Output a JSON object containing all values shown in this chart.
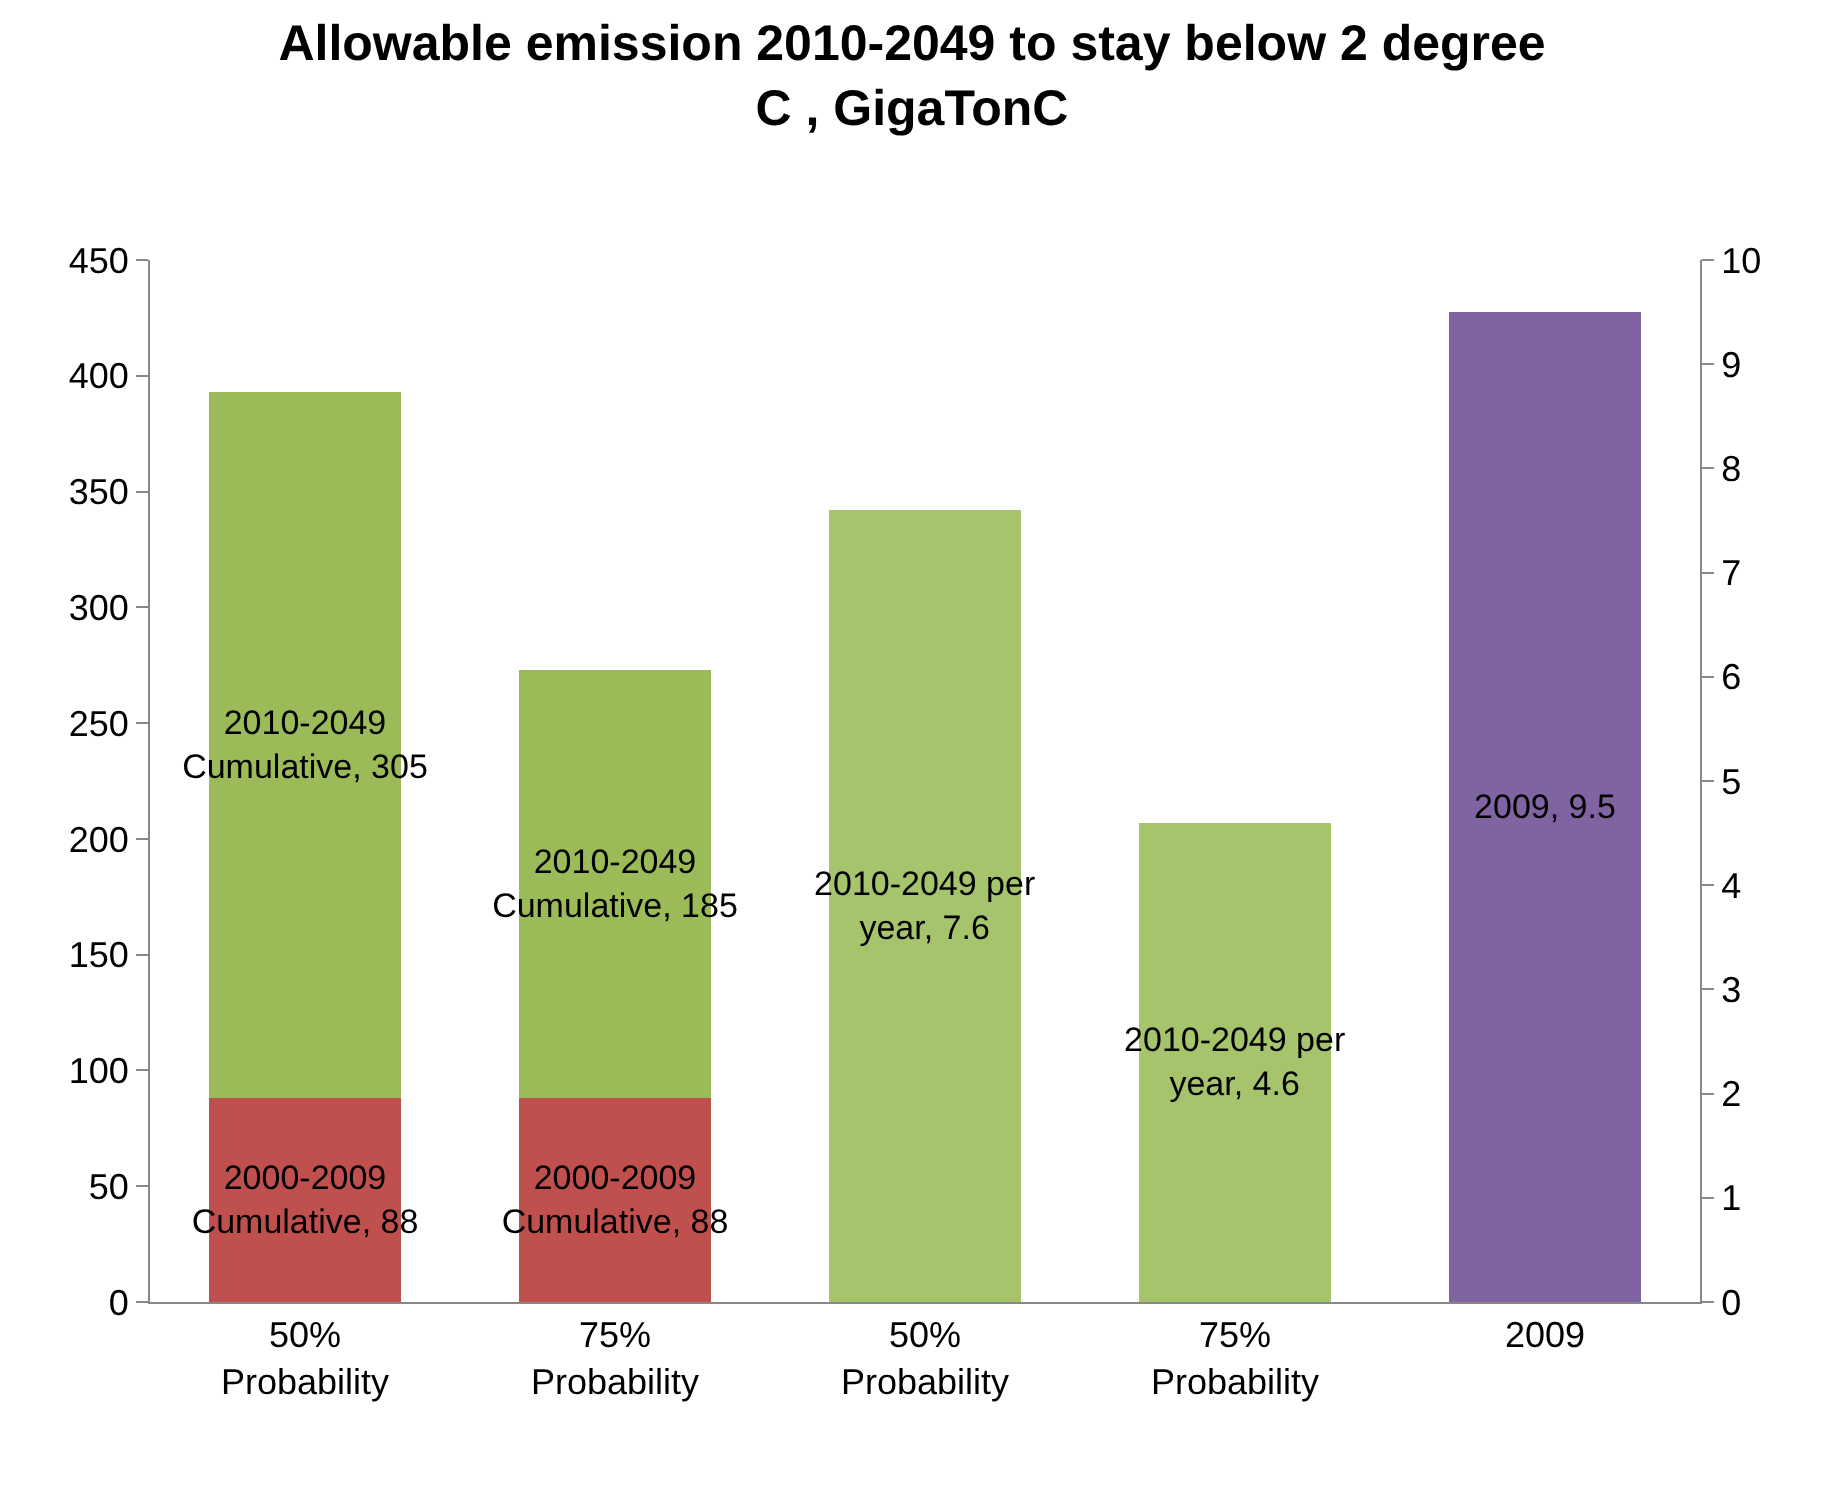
{
  "chart_data": {
    "type": "bar",
    "title": "Allowable emission 2010-2049 to stay below 2 degree C , GigaTonC",
    "categories": [
      "50% Probability",
      "75% Probability",
      "50% Probability",
      "75% Probability",
      "2009"
    ],
    "stacked": true,
    "series": [
      {
        "color": "#c0504d",
        "values": [
          88,
          88,
          null,
          null,
          null
        ],
        "value_labels": [
          "2000-2009 Cumulative, 88",
          "2000-2009 Cumulative, 88",
          null,
          null,
          null
        ]
      },
      {
        "color": "#9bbb59",
        "values": [
          305,
          185,
          null,
          null,
          null
        ],
        "value_labels": [
          "2010-2049 Cumulative, 305",
          "2010-2049 Cumulative, 185",
          null,
          null,
          null
        ]
      },
      {
        "color": "#a6c46c",
        "axis": "y2",
        "values": [
          null,
          null,
          7.6,
          4.6,
          null
        ],
        "value_labels": [
          null,
          null,
          "2010-2049 per year, 7.6",
          "2010-2049 per year, 4.6",
          null
        ]
      },
      {
        "color": "#8064a2",
        "axis": "y2",
        "values": [
          null,
          null,
          null,
          null,
          9.5
        ],
        "value_labels": [
          null,
          null,
          null,
          null,
          "2009, 9.5"
        ]
      }
    ],
    "ylim": [
      0,
      450
    ],
    "yticks": [
      0,
      50,
      100,
      150,
      200,
      250,
      300,
      350,
      400,
      450
    ],
    "y2lim": [
      0,
      10
    ],
    "y2ticks": [
      0,
      1,
      2,
      3,
      4,
      5,
      6,
      7,
      8,
      9,
      10
    ],
    "grid": false
  }
}
